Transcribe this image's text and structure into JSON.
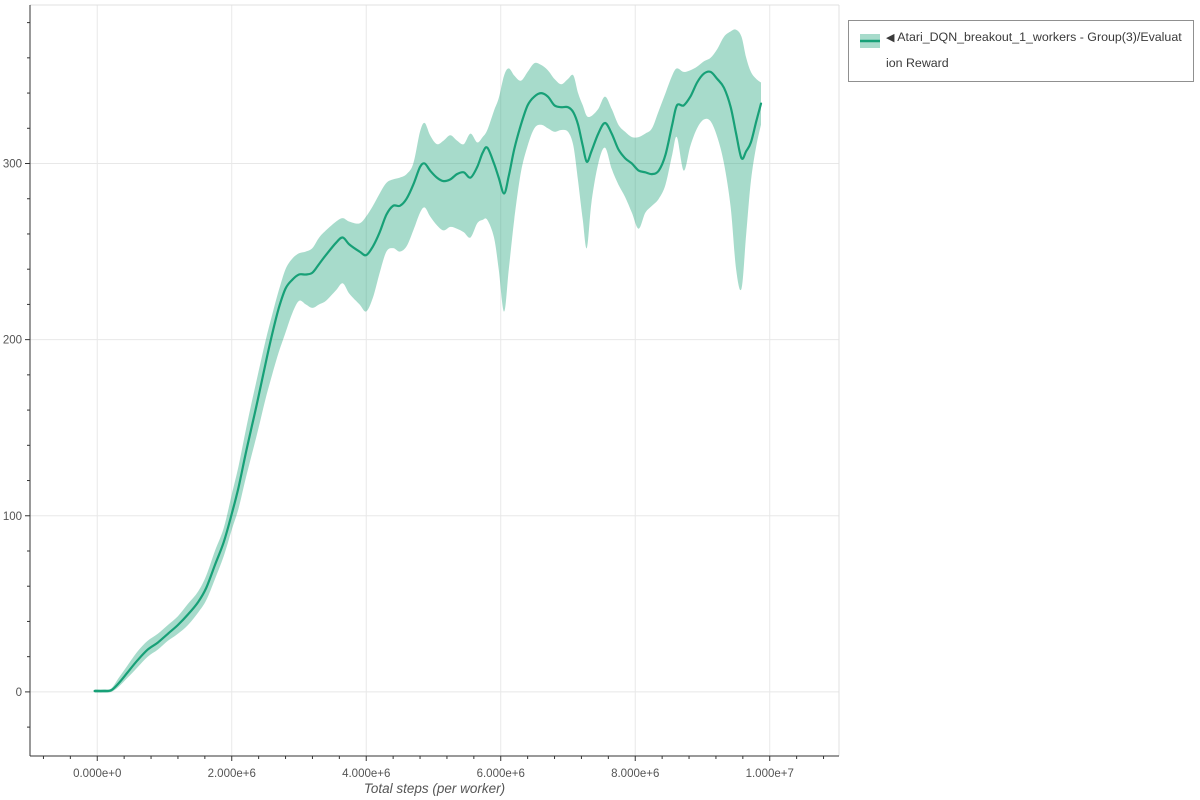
{
  "window": {
    "title": "Evaluation Reward chart",
    "background": "#ffffff"
  },
  "colors": {
    "line": "#17a077",
    "band_fill": "#17a077",
    "band_opacity": 0.38,
    "grid": "#e8e8e8",
    "plot_border": "#e0e0e0",
    "axis_line": "#333333",
    "tick_label": "#545454",
    "axis_title": "#555555",
    "legend_border": "#909090",
    "legend_text": "#3a3a3a"
  },
  "icons": {
    "legend_swatch": "band-with-line-swatch-icon",
    "collapse_indicator": "left-pointing-triangle"
  },
  "legend": {
    "collapse_indicator": "◀",
    "label": "Atari_DQN_breakout_1_workers - Group(3)/Evaluation Reward"
  },
  "chart_data": {
    "type": "line",
    "title": "",
    "xlabel": "Total steps (per worker)",
    "ylabel": "",
    "grid": true,
    "legend_position": "top-right-outside",
    "x_axis": {
      "unit_multiplier": 1000000,
      "range_e6": [
        -1.0,
        11.03
      ],
      "major_tick_values_e6": [
        0,
        2,
        4,
        6,
        8,
        10
      ],
      "major_tick_labels": [
        "0.000e+0",
        "2.000e+6",
        "4.000e+6",
        "6.000e+6",
        "8.000e+6",
        "1.000e+7"
      ],
      "minor_tick_step_e6": 0.4
    },
    "y_axis": {
      "range": [
        -36.4,
        390
      ],
      "major_tick_values": [
        0,
        100,
        200,
        300
      ],
      "major_tick_labels": [
        "0",
        "100",
        "200",
        "300"
      ],
      "minor_tick_step": 20
    },
    "series": [
      {
        "name": "Atari_DQN_breakout_1_workers - Group(3)/Evaluation Reward",
        "style": "mean-line-with-confidence-band",
        "columns": [
          "x_e6",
          "mean",
          "upper",
          "lower"
        ],
        "points": [
          [
            -0.04,
            0.5,
            1.5,
            -0.5
          ],
          [
            0.1,
            0.5,
            1.5,
            -0.5
          ],
          [
            0.21,
            1,
            2,
            0
          ],
          [
            0.32,
            5,
            8,
            3
          ],
          [
            0.45,
            11,
            15,
            8
          ],
          [
            0.6,
            18,
            23,
            14
          ],
          [
            0.75,
            24,
            29,
            20
          ],
          [
            0.9,
            28,
            33,
            24
          ],
          [
            1.05,
            33,
            38,
            29
          ],
          [
            1.2,
            38,
            43,
            33
          ],
          [
            1.35,
            44,
            50,
            38
          ],
          [
            1.5,
            51,
            57,
            45
          ],
          [
            1.62,
            59,
            66,
            52
          ],
          [
            1.75,
            72,
            80,
            64
          ],
          [
            1.88,
            85,
            93,
            77
          ],
          [
            2.0,
            101,
            112,
            92
          ],
          [
            2.1,
            116,
            128,
            104
          ],
          [
            2.2,
            134,
            147,
            120
          ],
          [
            2.3,
            151,
            165,
            135
          ],
          [
            2.4,
            168,
            182,
            150
          ],
          [
            2.5,
            186,
            199,
            166
          ],
          [
            2.6,
            203,
            214,
            180
          ],
          [
            2.7,
            218,
            228,
            193
          ],
          [
            2.8,
            229,
            240,
            204
          ],
          [
            2.9,
            234,
            246,
            215
          ],
          [
            3.0,
            237,
            249,
            222
          ],
          [
            3.1,
            237,
            250,
            220
          ],
          [
            3.2,
            238,
            252,
            218
          ],
          [
            3.3,
            243,
            258,
            220
          ],
          [
            3.4,
            248,
            262,
            222
          ],
          [
            3.55,
            255,
            267,
            228
          ],
          [
            3.65,
            258,
            269,
            232
          ],
          [
            3.75,
            254,
            267,
            226
          ],
          [
            3.9,
            250,
            266,
            220
          ],
          [
            4.0,
            248,
            270,
            216
          ],
          [
            4.1,
            253,
            276,
            224
          ],
          [
            4.2,
            261,
            283,
            238
          ],
          [
            4.3,
            271,
            289,
            250
          ],
          [
            4.4,
            276,
            291,
            252
          ],
          [
            4.5,
            276,
            292,
            250
          ],
          [
            4.6,
            280,
            294,
            253
          ],
          [
            4.7,
            288,
            300,
            262
          ],
          [
            4.8,
            298,
            318,
            272
          ],
          [
            4.87,
            300,
            323,
            275
          ],
          [
            4.95,
            296,
            316,
            270
          ],
          [
            5.05,
            292,
            311,
            265
          ],
          [
            5.15,
            290,
            313,
            262
          ],
          [
            5.25,
            291,
            316,
            264
          ],
          [
            5.35,
            294,
            313,
            263
          ],
          [
            5.45,
            295,
            311,
            261
          ],
          [
            5.55,
            292,
            317,
            258
          ],
          [
            5.65,
            298,
            312,
            266
          ],
          [
            5.73,
            306,
            315,
            268
          ],
          [
            5.8,
            309,
            319,
            268
          ],
          [
            5.9,
            300,
            330,
            258
          ],
          [
            5.97,
            292,
            337,
            240
          ],
          [
            6.05,
            283,
            350,
            216
          ],
          [
            6.12,
            293,
            354,
            240
          ],
          [
            6.2,
            308,
            350,
            268
          ],
          [
            6.3,
            322,
            347,
            295
          ],
          [
            6.4,
            333,
            352,
            310
          ],
          [
            6.5,
            338,
            357,
            320
          ],
          [
            6.6,
            340,
            356,
            322
          ],
          [
            6.7,
            338,
            353,
            320
          ],
          [
            6.8,
            333,
            348,
            318
          ],
          [
            6.9,
            332,
            345,
            319
          ],
          [
            7.0,
            332,
            348,
            318
          ],
          [
            7.08,
            329,
            350,
            310
          ],
          [
            7.15,
            322,
            340,
            290
          ],
          [
            7.22,
            310,
            333,
            268
          ],
          [
            7.28,
            301,
            327,
            252
          ],
          [
            7.35,
            307,
            327,
            278
          ],
          [
            7.45,
            317,
            331,
            300
          ],
          [
            7.55,
            323,
            338,
            309
          ],
          [
            7.65,
            317,
            331,
            297
          ],
          [
            7.75,
            308,
            322,
            288
          ],
          [
            7.85,
            303,
            318,
            281
          ],
          [
            7.95,
            300,
            315,
            272
          ],
          [
            8.05,
            296,
            315,
            263
          ],
          [
            8.15,
            295,
            317,
            272
          ],
          [
            8.25,
            294,
            320,
            276
          ],
          [
            8.35,
            296,
            330,
            280
          ],
          [
            8.45,
            305,
            340,
            288
          ],
          [
            8.55,
            322,
            350,
            305
          ],
          [
            8.62,
            333,
            354,
            315
          ],
          [
            8.72,
            333,
            352,
            296
          ],
          [
            8.82,
            338,
            353,
            310
          ],
          [
            8.92,
            346,
            355,
            320
          ],
          [
            9.02,
            351,
            358,
            325
          ],
          [
            9.12,
            352,
            360,
            324
          ],
          [
            9.22,
            348,
            365,
            315
          ],
          [
            9.32,
            343,
            372,
            300
          ],
          [
            9.42,
            332,
            375,
            275
          ],
          [
            9.5,
            317,
            376,
            240
          ],
          [
            9.58,
            303,
            372,
            229
          ],
          [
            9.65,
            307,
            360,
            260
          ],
          [
            9.72,
            312,
            352,
            290
          ],
          [
            9.8,
            324,
            348,
            310
          ],
          [
            9.87,
            334,
            346,
            322
          ]
        ]
      }
    ]
  }
}
